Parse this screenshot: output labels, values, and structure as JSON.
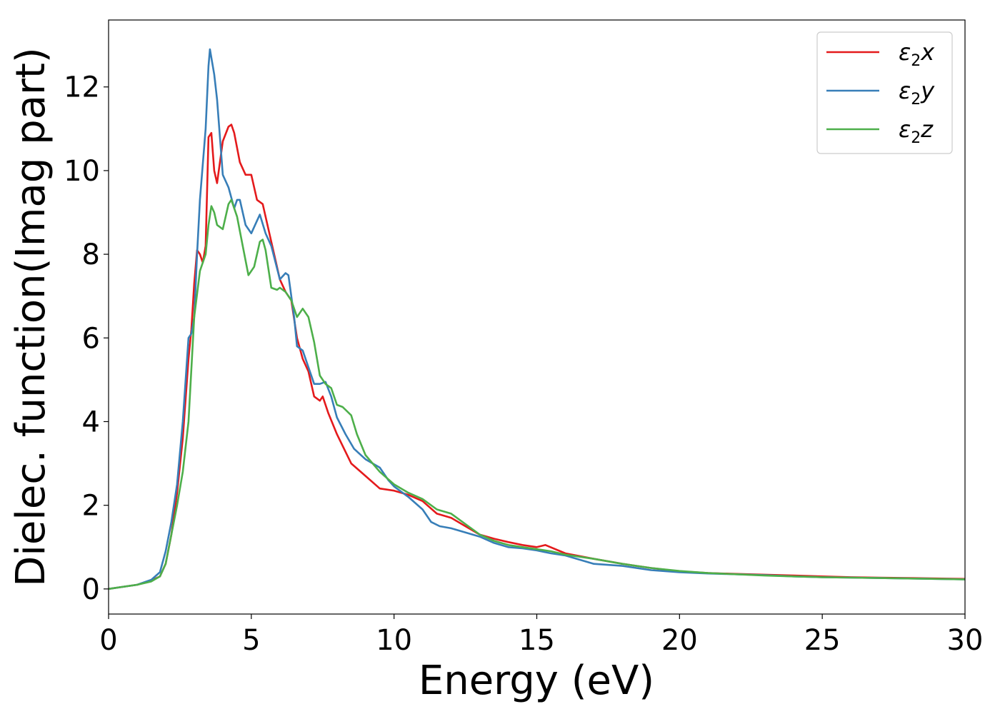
{
  "chart_data": {
    "type": "line",
    "xlabel": "Energy (eV)",
    "ylabel": "Dielec. function(Imag part)",
    "xlim": [
      0,
      30
    ],
    "ylim": [
      -0.6,
      13.6
    ],
    "xticks": [
      0,
      5,
      10,
      15,
      20,
      25,
      30
    ],
    "yticks": [
      0,
      2,
      4,
      6,
      8,
      10,
      12
    ],
    "grid": false,
    "legend": "top-right",
    "series": [
      {
        "name": "ε2x",
        "legend_base": "ε",
        "legend_sub": "2",
        "legend_var": "x",
        "color": "#e41a1c",
        "points": [
          [
            0,
            0
          ],
          [
            0.5,
            0.05
          ],
          [
            1,
            0.1
          ],
          [
            1.5,
            0.2
          ],
          [
            1.8,
            0.3
          ],
          [
            2.0,
            0.6
          ],
          [
            2.2,
            1.3
          ],
          [
            2.4,
            2.3
          ],
          [
            2.6,
            3.6
          ],
          [
            2.8,
            5.5
          ],
          [
            2.9,
            6.2
          ],
          [
            3.0,
            7.3
          ],
          [
            3.1,
            8.1
          ],
          [
            3.2,
            8.0
          ],
          [
            3.3,
            7.8
          ],
          [
            3.4,
            8.2
          ],
          [
            3.5,
            10.8
          ],
          [
            3.6,
            10.9
          ],
          [
            3.7,
            10.0
          ],
          [
            3.8,
            9.7
          ],
          [
            3.9,
            10.2
          ],
          [
            4.0,
            10.7
          ],
          [
            4.2,
            11.05
          ],
          [
            4.3,
            11.1
          ],
          [
            4.4,
            10.9
          ],
          [
            4.6,
            10.2
          ],
          [
            4.8,
            9.9
          ],
          [
            5.0,
            9.9
          ],
          [
            5.2,
            9.3
          ],
          [
            5.4,
            9.2
          ],
          [
            5.6,
            8.6
          ],
          [
            5.8,
            8.0
          ],
          [
            6.0,
            7.4
          ],
          [
            6.2,
            7.1
          ],
          [
            6.4,
            6.9
          ],
          [
            6.6,
            6.0
          ],
          [
            6.8,
            5.5
          ],
          [
            7.0,
            5.2
          ],
          [
            7.2,
            4.6
          ],
          [
            7.4,
            4.5
          ],
          [
            7.5,
            4.6
          ],
          [
            7.7,
            4.2
          ],
          [
            8.0,
            3.7
          ],
          [
            8.5,
            3.0
          ],
          [
            9.0,
            2.7
          ],
          [
            9.5,
            2.4
          ],
          [
            10.0,
            2.35
          ],
          [
            10.5,
            2.25
          ],
          [
            11.0,
            2.1
          ],
          [
            11.5,
            1.8
          ],
          [
            12.0,
            1.7
          ],
          [
            12.5,
            1.5
          ],
          [
            13.0,
            1.3
          ],
          [
            13.5,
            1.2
          ],
          [
            14.0,
            1.12
          ],
          [
            14.5,
            1.05
          ],
          [
            15.0,
            1.0
          ],
          [
            15.3,
            1.05
          ],
          [
            16.0,
            0.85
          ],
          [
            17.0,
            0.72
          ],
          [
            18.0,
            0.6
          ],
          [
            19.0,
            0.5
          ],
          [
            20.0,
            0.42
          ],
          [
            21.0,
            0.38
          ],
          [
            22.0,
            0.36
          ],
          [
            23.0,
            0.34
          ],
          [
            24.0,
            0.32
          ],
          [
            25.0,
            0.3
          ],
          [
            26.0,
            0.28
          ],
          [
            27.0,
            0.27
          ],
          [
            28.0,
            0.26
          ],
          [
            29.0,
            0.25
          ],
          [
            30.0,
            0.24
          ]
        ]
      },
      {
        "name": "ε2y",
        "legend_base": "ε",
        "legend_sub": "2",
        "legend_var": "y",
        "color": "#377eb8",
        "points": [
          [
            0,
            0
          ],
          [
            0.5,
            0.05
          ],
          [
            1,
            0.1
          ],
          [
            1.5,
            0.22
          ],
          [
            1.8,
            0.4
          ],
          [
            2.0,
            0.9
          ],
          [
            2.2,
            1.6
          ],
          [
            2.4,
            2.5
          ],
          [
            2.6,
            4.0
          ],
          [
            2.8,
            6.0
          ],
          [
            2.9,
            6.1
          ],
          [
            3.0,
            6.5
          ],
          [
            3.1,
            8.0
          ],
          [
            3.2,
            9.3
          ],
          [
            3.4,
            11.0
          ],
          [
            3.5,
            12.5
          ],
          [
            3.55,
            12.9
          ],
          [
            3.7,
            12.3
          ],
          [
            3.8,
            11.7
          ],
          [
            4.0,
            9.9
          ],
          [
            4.2,
            9.6
          ],
          [
            4.4,
            9.1
          ],
          [
            4.5,
            9.3
          ],
          [
            4.6,
            9.3
          ],
          [
            4.8,
            8.7
          ],
          [
            5.0,
            8.5
          ],
          [
            5.2,
            8.8
          ],
          [
            5.3,
            8.95
          ],
          [
            5.5,
            8.5
          ],
          [
            5.7,
            8.2
          ],
          [
            6.0,
            7.4
          ],
          [
            6.2,
            7.55
          ],
          [
            6.3,
            7.5
          ],
          [
            6.5,
            6.5
          ],
          [
            6.6,
            5.8
          ],
          [
            6.8,
            5.7
          ],
          [
            7.0,
            5.3
          ],
          [
            7.2,
            4.9
          ],
          [
            7.4,
            4.9
          ],
          [
            7.6,
            4.95
          ],
          [
            7.8,
            4.6
          ],
          [
            8.0,
            4.1
          ],
          [
            8.3,
            3.7
          ],
          [
            8.6,
            3.35
          ],
          [
            9.0,
            3.1
          ],
          [
            9.5,
            2.9
          ],
          [
            9.8,
            2.6
          ],
          [
            10.0,
            2.45
          ],
          [
            10.5,
            2.2
          ],
          [
            11.0,
            1.9
          ],
          [
            11.3,
            1.6
          ],
          [
            11.6,
            1.5
          ],
          [
            12.0,
            1.45
          ],
          [
            12.5,
            1.35
          ],
          [
            13.0,
            1.25
          ],
          [
            13.5,
            1.1
          ],
          [
            14.0,
            1.0
          ],
          [
            14.5,
            0.97
          ],
          [
            15.0,
            0.92
          ],
          [
            15.5,
            0.85
          ],
          [
            16.0,
            0.8
          ],
          [
            17.0,
            0.6
          ],
          [
            18.0,
            0.55
          ],
          [
            19.0,
            0.45
          ],
          [
            20.0,
            0.4
          ],
          [
            21.0,
            0.37
          ],
          [
            22.0,
            0.35
          ],
          [
            23.0,
            0.33
          ],
          [
            24.0,
            0.3
          ],
          [
            25.0,
            0.28
          ],
          [
            26.0,
            0.27
          ],
          [
            27.0,
            0.26
          ],
          [
            28.0,
            0.25
          ],
          [
            29.0,
            0.24
          ],
          [
            30.0,
            0.23
          ]
        ]
      },
      {
        "name": "ε2z",
        "legend_base": "ε",
        "legend_sub": "2",
        "legend_var": "z",
        "color": "#4daf4a",
        "points": [
          [
            0,
            0
          ],
          [
            0.5,
            0.05
          ],
          [
            1,
            0.1
          ],
          [
            1.5,
            0.18
          ],
          [
            1.8,
            0.3
          ],
          [
            2.0,
            0.6
          ],
          [
            2.2,
            1.3
          ],
          [
            2.4,
            2.0
          ],
          [
            2.6,
            2.8
          ],
          [
            2.8,
            4.0
          ],
          [
            3.0,
            6.5
          ],
          [
            3.2,
            7.6
          ],
          [
            3.4,
            8.0
          ],
          [
            3.5,
            8.7
          ],
          [
            3.6,
            9.15
          ],
          [
            3.7,
            9.0
          ],
          [
            3.8,
            8.7
          ],
          [
            4.0,
            8.6
          ],
          [
            4.2,
            9.2
          ],
          [
            4.3,
            9.3
          ],
          [
            4.5,
            8.9
          ],
          [
            4.7,
            8.2
          ],
          [
            4.9,
            7.5
          ],
          [
            5.1,
            7.7
          ],
          [
            5.3,
            8.3
          ],
          [
            5.4,
            8.35
          ],
          [
            5.5,
            8.1
          ],
          [
            5.7,
            7.2
          ],
          [
            5.9,
            7.15
          ],
          [
            6.0,
            7.2
          ],
          [
            6.2,
            7.1
          ],
          [
            6.4,
            6.9
          ],
          [
            6.6,
            6.5
          ],
          [
            6.8,
            6.7
          ],
          [
            7.0,
            6.5
          ],
          [
            7.2,
            5.9
          ],
          [
            7.4,
            5.1
          ],
          [
            7.6,
            4.9
          ],
          [
            7.8,
            4.8
          ],
          [
            8.0,
            4.4
          ],
          [
            8.2,
            4.35
          ],
          [
            8.5,
            4.15
          ],
          [
            8.7,
            3.7
          ],
          [
            9.0,
            3.2
          ],
          [
            9.5,
            2.8
          ],
          [
            10.0,
            2.5
          ],
          [
            10.5,
            2.3
          ],
          [
            11.0,
            2.15
          ],
          [
            11.5,
            1.9
          ],
          [
            12.0,
            1.8
          ],
          [
            12.5,
            1.55
          ],
          [
            13.0,
            1.3
          ],
          [
            13.5,
            1.15
          ],
          [
            14.0,
            1.05
          ],
          [
            14.5,
            1.0
          ],
          [
            15.0,
            0.95
          ],
          [
            15.5,
            0.9
          ],
          [
            16.0,
            0.82
          ],
          [
            17.0,
            0.72
          ],
          [
            18.0,
            0.6
          ],
          [
            19.0,
            0.5
          ],
          [
            20.0,
            0.43
          ],
          [
            21.0,
            0.38
          ],
          [
            22.0,
            0.35
          ],
          [
            23.0,
            0.32
          ],
          [
            24.0,
            0.3
          ],
          [
            25.0,
            0.28
          ],
          [
            26.0,
            0.27
          ],
          [
            27.0,
            0.26
          ],
          [
            28.0,
            0.25
          ],
          [
            29.0,
            0.24
          ],
          [
            30.0,
            0.23
          ]
        ]
      }
    ]
  }
}
